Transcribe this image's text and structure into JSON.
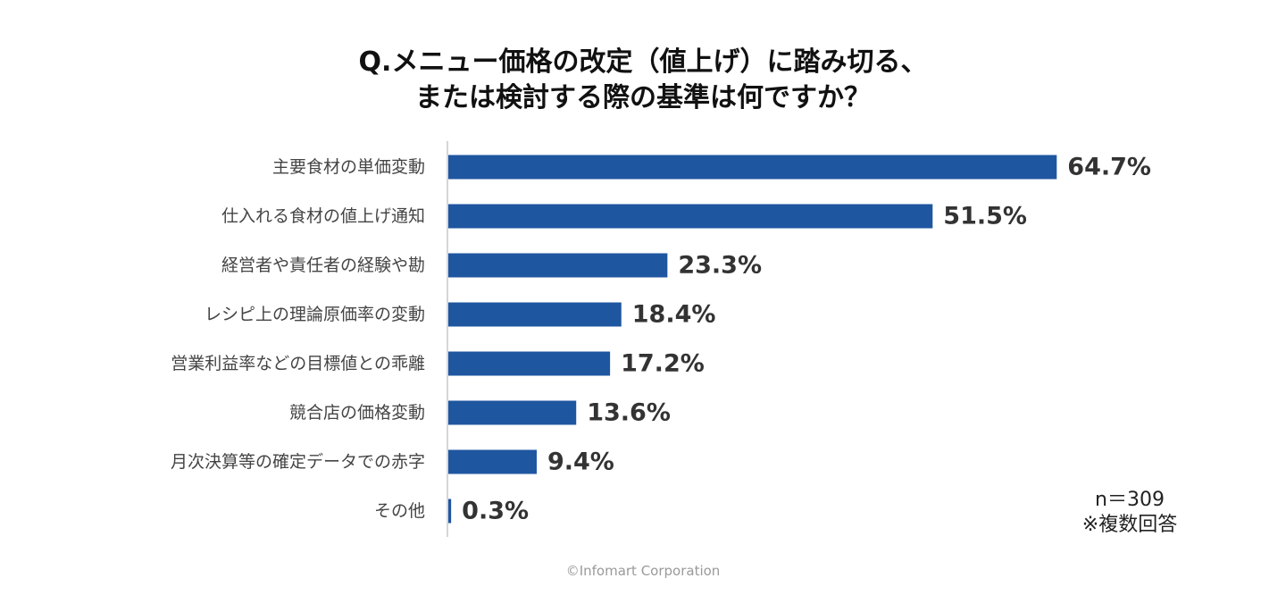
{
  "chart_data": {
    "type": "bar",
    "orientation": "horizontal",
    "title": "Q.メニュー価格の改定（値上げ）に踏み切る、",
    "subtitle": "または検討する際の基準は何ですか？",
    "categories": [
      "主要食材の単価変動",
      "仕入れる食材の値上げ通知",
      "経営者や責任者の経験や勘",
      "レシピ上の理論原価率の変動",
      "営業利益率などの目標値との乖離",
      "競合店の価格変動",
      "月次決算等の確定データでの赤字",
      "その他"
    ],
    "values": [
      64.7,
      51.5,
      23.3,
      18.4,
      17.2,
      13.6,
      9.4,
      0.3
    ],
    "value_labels": [
      "64.7%",
      "51.5%",
      "23.3%",
      "18.4%",
      "17.2%",
      "13.6%",
      "9.4%",
      "0.3%"
    ],
    "xlim": [
      0,
      75
    ],
    "grid": false,
    "bar_color": "#1f56a0"
  },
  "notes": {
    "sample": "n＝309",
    "multi": "※複数回答"
  },
  "footer": {
    "copyright": "©Infomart Corporation"
  }
}
